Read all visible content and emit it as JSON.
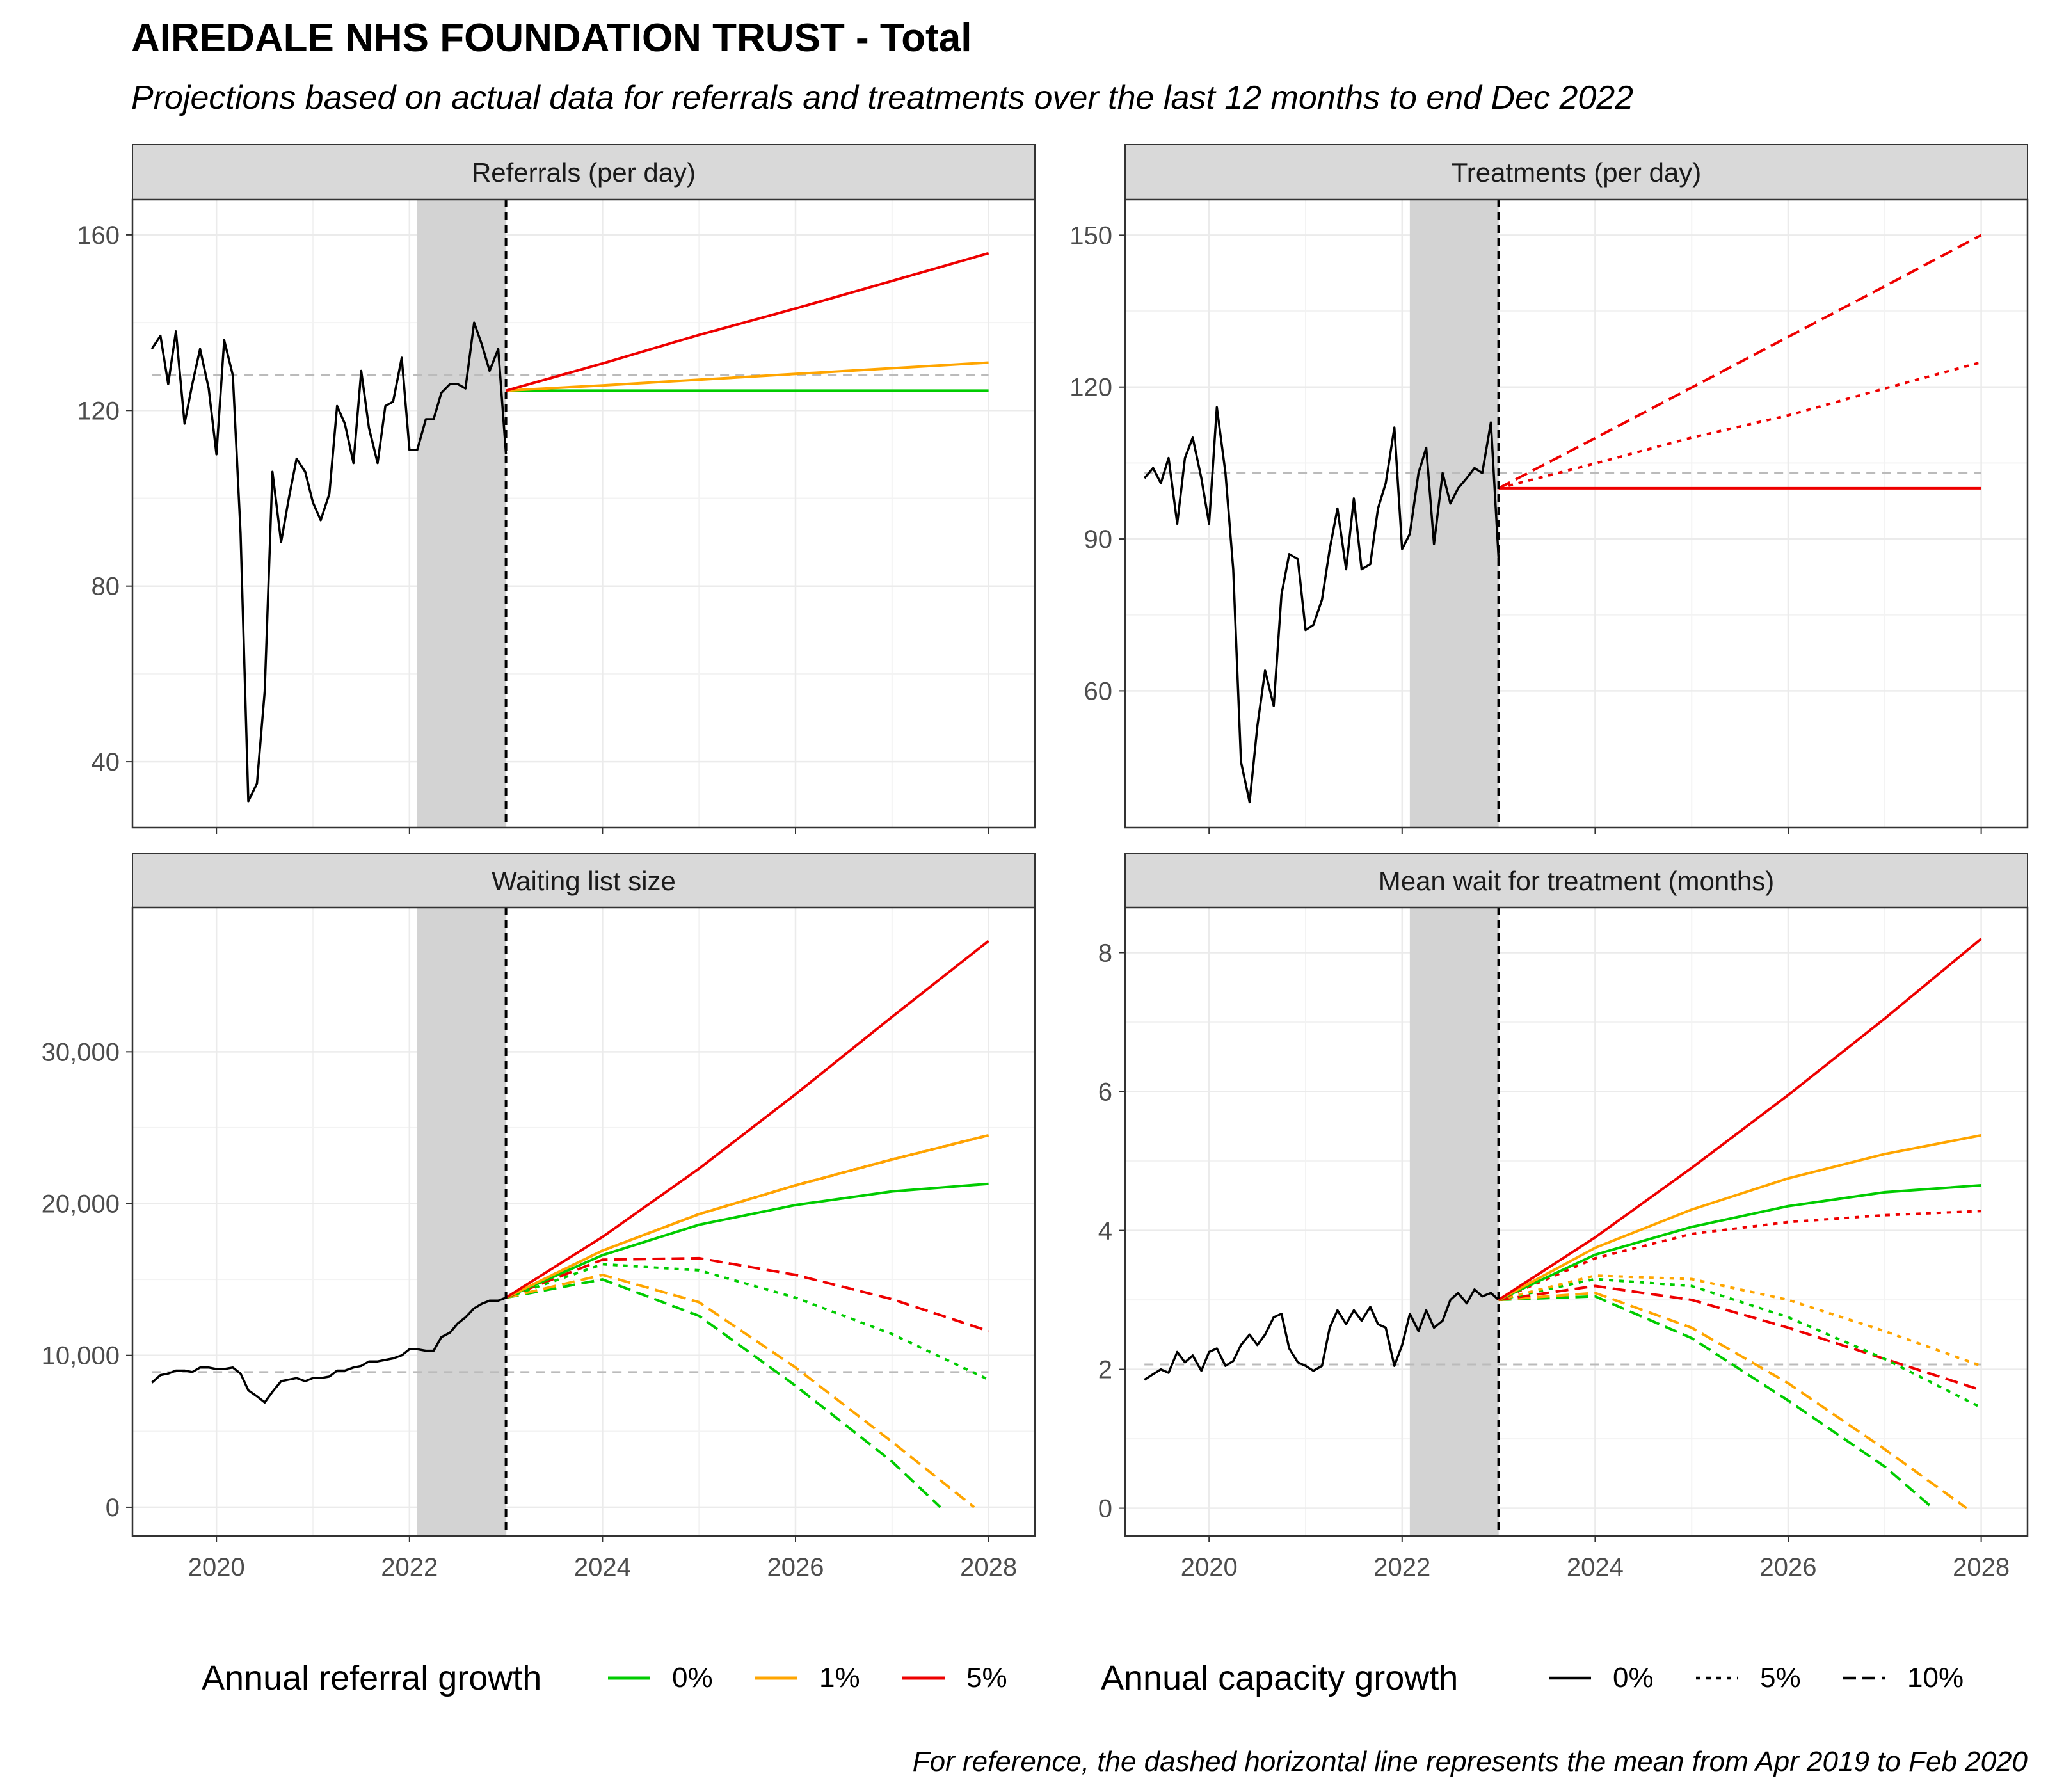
{
  "title": "AIREDALE NHS FOUNDATION TRUST - Total",
  "subtitle": "Projections based on actual data for referrals and treatments over the last 12 months to end Dec 2022",
  "caption": "For reference, the dashed horizontal line represents the mean from Apr 2019 to Feb 2020",
  "colors": {
    "g0": "#00cc00",
    "g1": "#ffa500",
    "g5": "#ee0000",
    "actual": "#000000",
    "ref": "#bbbbbb",
    "shade": "#d3d3d3",
    "strip": "#d9d9d9",
    "grid": "#ebebeb"
  },
  "legend": {
    "referral": {
      "title": "Annual referral growth",
      "items": [
        {
          "label": "0%",
          "color": "#00cc00"
        },
        {
          "label": "1%",
          "color": "#ffa500"
        },
        {
          "label": "5%",
          "color": "#ee0000"
        }
      ]
    },
    "capacity": {
      "title": "Annual capacity growth",
      "items": [
        {
          "label": "0%",
          "dash": "solid"
        },
        {
          "label": "5%",
          "dash": "dotted"
        },
        {
          "label": "10%",
          "dash": "dashed"
        }
      ]
    }
  },
  "chart_data": [
    {
      "type": "line",
      "title": "Referrals (per day)",
      "xlim": [
        2019.13,
        2028.48
      ],
      "ylim": [
        25,
        168
      ],
      "xticks": [
        2020,
        2022,
        2024,
        2026,
        2028
      ],
      "yticks": [
        40,
        80,
        120,
        160
      ],
      "ytick_labels": [
        "40",
        "80",
        "120",
        "160"
      ],
      "shade": [
        2022.08,
        2023.0
      ],
      "vline": 2023.0,
      "ref_line": {
        "y": 128,
        "x": [
          2019.33,
          2028.0
        ]
      },
      "actual": {
        "x": [
          2019.33,
          2019.42,
          2019.5,
          2019.58,
          2019.67,
          2019.75,
          2019.83,
          2019.92,
          2020.0,
          2020.08,
          2020.17,
          2020.25,
          2020.33,
          2020.42,
          2020.5,
          2020.58,
          2020.67,
          2020.75,
          2020.83,
          2020.92,
          2021.0,
          2021.08,
          2021.17,
          2021.25,
          2021.33,
          2021.42,
          2021.5,
          2021.58,
          2021.67,
          2021.75,
          2021.83,
          2021.92,
          2022.0,
          2022.08,
          2022.17,
          2022.25,
          2022.33,
          2022.42,
          2022.5,
          2022.58,
          2022.67,
          2022.75,
          2022.83,
          2022.92,
          2023.0
        ],
        "y": [
          134,
          137,
          126,
          138,
          117,
          126,
          134,
          125,
          110,
          136,
          128,
          92,
          31,
          35,
          56,
          106,
          90,
          100,
          109,
          106,
          99,
          95,
          101,
          121,
          117,
          108,
          129,
          116,
          108,
          121,
          122,
          132,
          111,
          111,
          118,
          118,
          124,
          126,
          126,
          125,
          140,
          135,
          129,
          134,
          110
        ]
      },
      "series": [
        {
          "name": "0%",
          "growth": "0%",
          "capacity": "0%",
          "x": [
            2023.0,
            2028.0
          ],
          "y": [
            124.5,
            124.5
          ]
        },
        {
          "name": "1%",
          "growth": "1%",
          "capacity": "0%",
          "x": [
            2023.0,
            2024.0,
            2025.0,
            2026.0,
            2027.0,
            2028.0
          ],
          "y": [
            124.5,
            125.7,
            127.0,
            128.3,
            129.6,
            130.9
          ]
        },
        {
          "name": "5%",
          "growth": "5%",
          "capacity": "0%",
          "x": [
            2023.0,
            2024.0,
            2025.0,
            2026.0,
            2027.0,
            2028.0
          ],
          "y": [
            124.5,
            130.7,
            137.2,
            143.2,
            149.5,
            155.8
          ]
        }
      ]
    },
    {
      "type": "line",
      "title": "Treatments (per day)",
      "xlim": [
        2019.13,
        2028.48
      ],
      "ylim": [
        33,
        157
      ],
      "xticks": [
        2020,
        2022,
        2024,
        2026,
        2028
      ],
      "yticks": [
        60,
        90,
        120,
        150
      ],
      "ytick_labels": [
        "60",
        "90",
        "120",
        "150"
      ],
      "shade": [
        2022.08,
        2023.0
      ],
      "vline": 2023.0,
      "ref_line": {
        "y": 103,
        "x": [
          2019.33,
          2028.0
        ]
      },
      "actual": {
        "x": [
          2019.33,
          2019.42,
          2019.5,
          2019.58,
          2019.67,
          2019.75,
          2019.83,
          2019.92,
          2020.0,
          2020.08,
          2020.17,
          2020.25,
          2020.33,
          2020.42,
          2020.5,
          2020.58,
          2020.67,
          2020.75,
          2020.83,
          2020.92,
          2021.0,
          2021.08,
          2021.17,
          2021.25,
          2021.33,
          2021.42,
          2021.5,
          2021.58,
          2021.67,
          2021.75,
          2021.83,
          2021.92,
          2022.0,
          2022.08,
          2022.17,
          2022.25,
          2022.33,
          2022.42,
          2022.5,
          2022.58,
          2022.67,
          2022.75,
          2022.83,
          2022.92,
          2023.0
        ],
        "y": [
          102,
          104,
          101,
          106,
          93,
          106,
          110,
          102,
          93,
          116,
          103,
          84,
          46,
          38,
          53,
          64,
          57,
          79,
          87,
          86,
          72,
          73,
          78,
          88,
          96,
          84,
          98,
          84,
          85,
          96,
          101,
          112,
          88,
          91,
          103,
          108,
          89,
          103,
          97,
          100,
          102,
          104,
          103,
          113,
          86
        ]
      },
      "series": [
        {
          "name": "0%",
          "growth": "5%",
          "capacity": "0%",
          "x": [
            2023.0,
            2028.0
          ],
          "y": [
            100,
            100
          ]
        },
        {
          "name": "5%",
          "growth": "5%",
          "capacity": "5%",
          "x": [
            2023.0,
            2024.0,
            2025.0,
            2026.0,
            2027.0,
            2028.0
          ],
          "y": [
            100,
            104.9,
            110.0,
            114.4,
            119.7,
            124.9
          ]
        },
        {
          "name": "10%",
          "growth": "5%",
          "capacity": "10%",
          "x": [
            2023.0,
            2024.0,
            2025.0,
            2026.0,
            2027.0,
            2028.0
          ],
          "y": [
            100,
            109.9,
            119.9,
            129.9,
            139.9,
            150
          ]
        }
      ]
    },
    {
      "type": "line",
      "title": "Waiting list size",
      "xlim": [
        2019.13,
        2028.48
      ],
      "ylim": [
        -1900,
        39500
      ],
      "xticks": [
        2020,
        2022,
        2024,
        2026,
        2028
      ],
      "xtick_labels": [
        "2020",
        "2022",
        "2024",
        "2026",
        "2028"
      ],
      "yticks": [
        0,
        10000,
        20000,
        30000
      ],
      "ytick_labels": [
        "0",
        "10,000",
        "20,000",
        "30,000"
      ],
      "shade": [
        2022.08,
        2023.0
      ],
      "vline": 2023.0,
      "ref_line": {
        "y": 8900,
        "x": [
          2019.33,
          2028.0
        ]
      },
      "actual": {
        "x": [
          2019.33,
          2019.42,
          2019.5,
          2019.58,
          2019.67,
          2019.75,
          2019.83,
          2019.92,
          2020.0,
          2020.08,
          2020.17,
          2020.25,
          2020.33,
          2020.42,
          2020.5,
          2020.58,
          2020.67,
          2020.75,
          2020.83,
          2020.92,
          2021.0,
          2021.08,
          2021.17,
          2021.25,
          2021.33,
          2021.42,
          2021.5,
          2021.58,
          2021.67,
          2021.75,
          2021.83,
          2021.92,
          2022.0,
          2022.08,
          2022.17,
          2022.25,
          2022.33,
          2022.42,
          2022.5,
          2022.58,
          2022.67,
          2022.75,
          2022.83,
          2022.92,
          2023.0
        ],
        "y": [
          8200,
          8700,
          8800,
          9000,
          9000,
          8900,
          9200,
          9200,
          9100,
          9100,
          9200,
          8800,
          7700,
          7300,
          6900,
          7600,
          8300,
          8400,
          8500,
          8300,
          8500,
          8500,
          8600,
          9000,
          9000,
          9200,
          9300,
          9600,
          9600,
          9700,
          9800,
          10000,
          10400,
          10400,
          10300,
          10300,
          11200,
          11500,
          12100,
          12500,
          13100,
          13400,
          13600,
          13600,
          13800
        ]
      },
      "series": [
        {
          "name": "0%",
          "growth": "0%",
          "capacity": "0%",
          "x": [
            2023.0,
            2024.0,
            2025.0,
            2026.0,
            2027.0,
            2028.0
          ],
          "y": [
            13800,
            16600,
            18600,
            19900,
            20800,
            21300
          ]
        },
        {
          "name": "1%",
          "growth": "1%",
          "capacity": "0%",
          "x": [
            2023.0,
            2024.0,
            2025.0,
            2026.0,
            2027.0,
            2028.0
          ],
          "y": [
            13800,
            16900,
            19300,
            21200,
            22900,
            24500
          ]
        },
        {
          "name": "5%",
          "growth": "5%",
          "capacity": "0%",
          "x": [
            2023.0,
            2024.0,
            2025.0,
            2026.0,
            2027.0,
            2028.0
          ],
          "y": [
            13800,
            17800,
            22300,
            27200,
            32300,
            37300
          ]
        },
        {
          "name": "0%",
          "growth": "0%",
          "capacity": "5%",
          "x": [
            2023.0,
            2024.0,
            2025.0,
            2026.0,
            2027.0,
            2028.0
          ],
          "y": [
            13800,
            16000,
            15600,
            13800,
            11400,
            8400
          ]
        },
        {
          "name": "1%",
          "growth": "1%",
          "capacity": "5%",
          "x": [
            2023.0,
            2024.0,
            2025.0,
            2026.0,
            2027.0,
            2028.0
          ],
          "y": [
            13800,
            16900,
            19300,
            21200,
            22900,
            24500
          ]
        },
        {
          "name": "5%",
          "growth": "5%",
          "capacity": "5%",
          "x": [
            2023.0,
            2024.0,
            2025.0,
            2026.0,
            2027.0,
            2028.0
          ],
          "y": [
            13800,
            16900,
            19300,
            21200,
            22900,
            24500
          ]
        },
        {
          "name": "0%",
          "growth": "0%",
          "capacity": "10%",
          "x": [
            2023.0,
            2024.0,
            2025.0,
            2026.0,
            2027.0,
            2027.5
          ],
          "y": [
            13800,
            15000,
            12600,
            8000,
            3000,
            0
          ]
        },
        {
          "name": "1%",
          "growth": "1%",
          "capacity": "10%",
          "x": [
            2023.0,
            2024.0,
            2025.0,
            2026.0,
            2027.0,
            2027.85
          ],
          "y": [
            13800,
            15300,
            13500,
            9200,
            4300,
            0
          ]
        },
        {
          "name": "5%",
          "growth": "5%",
          "capacity": "10%",
          "x": [
            2023.0,
            2024.0,
            2025.0,
            2026.0,
            2027.0,
            2028.0
          ],
          "y": [
            13800,
            16300,
            16400,
            15300,
            13700,
            11600
          ]
        }
      ]
    },
    {
      "type": "line",
      "title": "Mean wait for treatment (months)",
      "xlim": [
        2019.13,
        2028.48
      ],
      "ylim": [
        -0.4,
        8.65
      ],
      "xticks": [
        2020,
        2022,
        2024,
        2026,
        2028
      ],
      "xtick_labels": [
        "2020",
        "2022",
        "2024",
        "2026",
        "2028"
      ],
      "yticks": [
        0,
        2,
        4,
        6,
        8
      ],
      "ytick_labels": [
        "0",
        "2",
        "4",
        "6",
        "8"
      ],
      "shade": [
        2022.08,
        2023.0
      ],
      "vline": 2023.0,
      "ref_line": {
        "y": 2.07,
        "x": [
          2019.33,
          2028.0
        ]
      },
      "actual": {
        "x": [
          2019.33,
          2019.42,
          2019.5,
          2019.58,
          2019.67,
          2019.75,
          2019.83,
          2019.92,
          2020.0,
          2020.08,
          2020.17,
          2020.25,
          2020.33,
          2020.42,
          2020.5,
          2020.58,
          2020.67,
          2020.75,
          2020.83,
          2020.92,
          2021.0,
          2021.08,
          2021.17,
          2021.25,
          2021.33,
          2021.42,
          2021.5,
          2021.58,
          2021.67,
          2021.75,
          2021.83,
          2021.92,
          2022.0,
          2022.08,
          2022.17,
          2022.25,
          2022.33,
          2022.42,
          2022.5,
          2022.58,
          2022.67,
          2022.75,
          2022.83,
          2022.92,
          2023.0
        ],
        "y": [
          1.85,
          1.93,
          2.0,
          1.95,
          2.25,
          2.1,
          2.2,
          1.98,
          2.25,
          2.3,
          2.05,
          2.12,
          2.35,
          2.5,
          2.35,
          2.5,
          2.75,
          2.8,
          2.3,
          2.1,
          2.05,
          1.98,
          2.05,
          2.6,
          2.85,
          2.65,
          2.85,
          2.7,
          2.9,
          2.65,
          2.6,
          2.05,
          2.35,
          2.8,
          2.55,
          2.85,
          2.6,
          2.7,
          3.0,
          3.1,
          2.95,
          3.15,
          3.05,
          3.1,
          3.0
        ]
      },
      "series": [
        {
          "name": "0%",
          "growth": "0%",
          "capacity": "0%",
          "x": [
            2023.0,
            2024.0,
            2025.0,
            2026.0,
            2027.0,
            2028.0
          ],
          "y": [
            3.0,
            3.65,
            4.05,
            4.35,
            4.55,
            4.65
          ]
        },
        {
          "name": "1%",
          "growth": "1%",
          "capacity": "0%",
          "x": [
            2023.0,
            2024.0,
            2025.0,
            2026.0,
            2027.0,
            2028.0
          ],
          "y": [
            3.0,
            3.75,
            4.3,
            4.75,
            5.1,
            5.37
          ]
        },
        {
          "name": "5%",
          "growth": "5%",
          "capacity": "0%",
          "x": [
            2023.0,
            2024.0,
            2025.0,
            2026.0,
            2027.0,
            2028.0
          ],
          "y": [
            3.0,
            3.9,
            4.9,
            5.95,
            7.05,
            8.2
          ]
        },
        {
          "name": "0%",
          "growth": "0%",
          "capacity": "5%",
          "x": [
            2023.0,
            2024.0,
            2025.0,
            2026.0,
            2027.0,
            2028.0
          ],
          "y": [
            3.0,
            3.3,
            3.2,
            2.75,
            2.15,
            1.45
          ]
        },
        {
          "name": "1%",
          "growth": "1%",
          "capacity": "5%",
          "x": [
            2023.0,
            2024.0,
            2025.0,
            2026.0,
            2027.0,
            2028.0
          ],
          "y": [
            3.0,
            3.35,
            3.3,
            3.0,
            2.55,
            2.05
          ]
        },
        {
          "name": "5%",
          "growth": "5%",
          "capacity": "5%",
          "x": [
            2023.0,
            2024.0,
            2025.0,
            2026.0,
            2027.0,
            2028.0
          ],
          "y": [
            3.0,
            3.6,
            3.95,
            4.12,
            4.22,
            4.28
          ]
        },
        {
          "name": "0%",
          "growth": "0%",
          "capacity": "10%",
          "x": [
            2023.0,
            2024.0,
            2025.0,
            2026.0,
            2027.0,
            2027.5
          ],
          "y": [
            3.0,
            3.05,
            2.45,
            1.55,
            0.6,
            0
          ]
        },
        {
          "name": "1%",
          "growth": "1%",
          "capacity": "10%",
          "x": [
            2023.0,
            2024.0,
            2025.0,
            2026.0,
            2027.0,
            2027.85
          ],
          "y": [
            3.0,
            3.1,
            2.6,
            1.8,
            0.85,
            0
          ]
        },
        {
          "name": "5%",
          "growth": "5%",
          "capacity": "10%",
          "x": [
            2023.0,
            2024.0,
            2025.0,
            2026.0,
            2027.0,
            2028.0
          ],
          "y": [
            3.0,
            3.2,
            3.0,
            2.6,
            2.15,
            1.7
          ]
        }
      ]
    }
  ]
}
